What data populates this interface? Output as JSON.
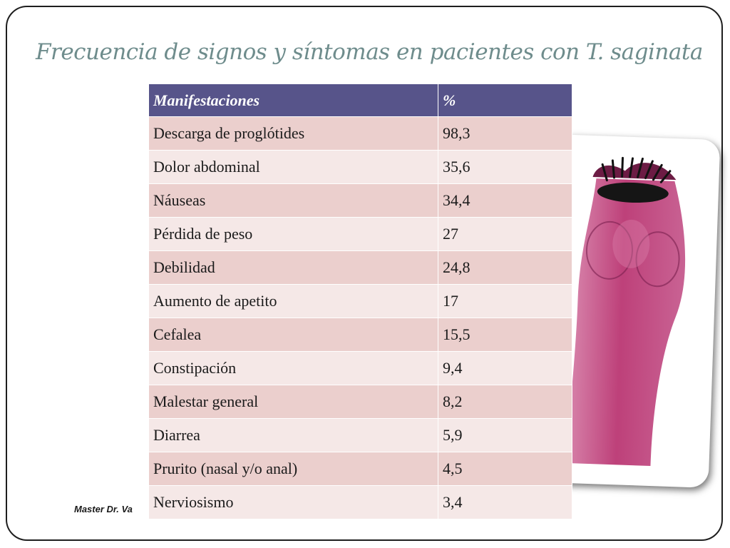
{
  "slide": {
    "title": "Frecuencia de signos y síntomas en pacientes con T. saginata",
    "footer": "Master Dr. Va"
  },
  "table": {
    "headers": [
      "Manifestaciones",
      "%"
    ],
    "rows": [
      {
        "manifestation": "Descarga de proglótides",
        "percent": "98,3"
      },
      {
        "manifestation": "Dolor abdominal",
        "percent": "35,6"
      },
      {
        "manifestation": "Náuseas",
        "percent": "34,4"
      },
      {
        "manifestation": "Pérdida de peso",
        "percent": "27"
      },
      {
        "manifestation": "Debilidad",
        "percent": "24,8"
      },
      {
        "manifestation": "Aumento de apetito",
        "percent": "17"
      },
      {
        "manifestation": "Cefalea",
        "percent": "15,5"
      },
      {
        "manifestation": "Constipación",
        "percent": "9,4"
      },
      {
        "manifestation": "Malestar general",
        "percent": "8,2"
      },
      {
        "manifestation": "Diarrea",
        "percent": "5,9"
      },
      {
        "manifestation": "Prurito (nasal y/o anal)",
        "percent": "4,5"
      },
      {
        "manifestation": "Nerviosismo",
        "percent": "3,4"
      }
    ]
  },
  "colors": {
    "title": "#6e8c8c",
    "header_bg": "#57548a",
    "row_odd": "#ebcfcd",
    "row_even": "#f5e8e7",
    "specimen": "#b8306e"
  },
  "image": {
    "subject": "tapeworm-scolex-photo"
  }
}
